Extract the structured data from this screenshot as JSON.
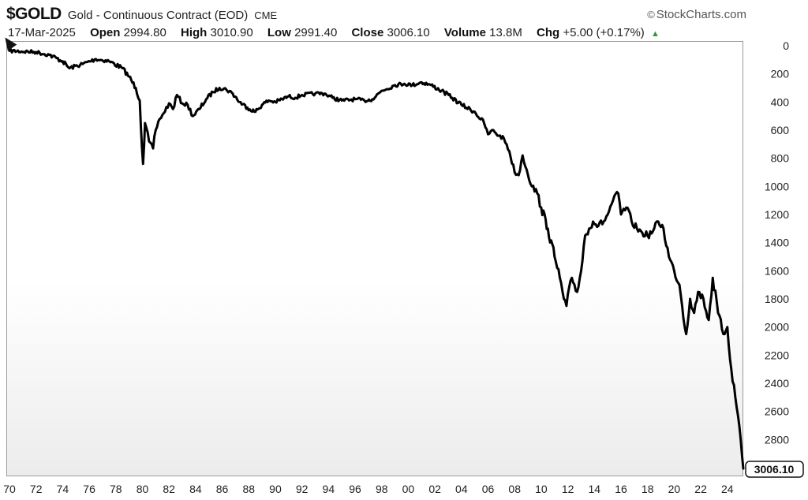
{
  "header": {
    "symbol": "$GOLD",
    "contract": "Gold - Continuous Contract (EOD)",
    "exchange": "CME",
    "brand_mark": "©",
    "brand": "StockCharts.com",
    "date": "17-Mar-2025",
    "open_label": "Open",
    "open_value": "2994.80",
    "high_label": "High",
    "high_value": "3010.90",
    "low_label": "Low",
    "low_value": "2991.40",
    "close_label": "Close",
    "close_value": "3006.10",
    "volume_label": "Volume",
    "volume_value": "13.8M",
    "chg_label": "Chg",
    "chg_value": "+5.00 (+0.17%)",
    "chg_arrow": "▲"
  },
  "colors": {
    "line": "#000000",
    "frame": "#9a9a9a",
    "tick_text": "#222222",
    "up": "#2a9a3a"
  },
  "icons": {
    "cursor": "mouse-pointer-icon"
  },
  "chart_data": {
    "type": "line",
    "y_axis_inverted": true,
    "ylim": [
      0,
      3000
    ],
    "yticks": [
      0,
      200,
      400,
      600,
      800,
      1000,
      1200,
      1400,
      1600,
      1800,
      2000,
      2200,
      2400,
      2600,
      2800
    ],
    "xlim": [
      1970,
      2025.2
    ],
    "xticks": [
      1970,
      1972,
      1974,
      1976,
      1978,
      1980,
      1982,
      1984,
      1986,
      1988,
      1990,
      1992,
      1994,
      1996,
      1998,
      2000,
      2002,
      2004,
      2006,
      2008,
      2010,
      2012,
      2014,
      2016,
      2018,
      2020,
      2022,
      2024
    ],
    "xtick_labels": [
      "70",
      "72",
      "74",
      "76",
      "78",
      "80",
      "82",
      "84",
      "86",
      "88",
      "90",
      "92",
      "94",
      "96",
      "98",
      "00",
      "02",
      "04",
      "06",
      "08",
      "10",
      "12",
      "14",
      "16",
      "18",
      "20",
      "22",
      "24"
    ],
    "last_value_label": "3006.10",
    "grid": false,
    "series": [
      {
        "x": [
          1970.0,
          1972.0,
          1973.0,
          1974.0,
          1974.5,
          1975.5,
          1976.5,
          1977.5,
          1978.5,
          1979.0,
          1979.5,
          1979.8,
          1980.05,
          1980.2,
          1980.5,
          1980.8,
          1981.0,
          1981.3,
          1981.6,
          1982.0,
          1982.3,
          1982.6,
          1983.0,
          1983.4,
          1983.8,
          1984.3,
          1984.8,
          1985.3,
          1985.8,
          1986.3,
          1986.8,
          1987.3,
          1987.9,
          1988.5,
          1989.0,
          1989.5,
          1990.0,
          1990.5,
          1991.0,
          1991.5,
          1992.0,
          1993.0,
          1993.7,
          1994.3,
          1995.0,
          1996.0,
          1996.7,
          1997.3,
          1998.0,
          1999.0,
          1999.7,
          2000.3,
          2001.0,
          2001.7,
          2002.5,
          2003.3,
          2004.0,
          2005.0,
          2005.7,
          2006.0,
          2006.4,
          2006.8,
          2007.2,
          2007.6,
          2008.0,
          2008.3,
          2008.6,
          2008.9,
          2009.3,
          2009.7,
          2010.0,
          2010.5,
          2011.0,
          2011.4,
          2011.7,
          2011.9,
          2012.3,
          2012.7,
          2013.0,
          2013.3,
          2013.6,
          2013.9,
          2014.3,
          2014.7,
          2015.0,
          2015.4,
          2015.8,
          2016.0,
          2016.4,
          2016.8,
          2017.2,
          2017.6,
          2018.0,
          2018.4,
          2018.8,
          2019.2,
          2019.6,
          2020.0,
          2020.4,
          2020.6,
          2020.9,
          2021.2,
          2021.5,
          2021.8,
          2022.2,
          2022.6,
          2022.9,
          2023.3,
          2023.7,
          2024.0,
          2024.3,
          2024.6,
          2024.9,
          2025.2
        ],
        "y": [
          36,
          45,
          65,
          110,
          160,
          130,
          95,
          110,
          160,
          220,
          300,
          390,
          840,
          550,
          680,
          730,
          600,
          520,
          480,
          410,
          450,
          350,
          410,
          420,
          500,
          450,
          380,
          330,
          300,
          310,
          340,
          400,
          440,
          470,
          420,
          390,
          400,
          380,
          360,
          370,
          350,
          340,
          340,
          370,
          390,
          380,
          390,
          380,
          320,
          280,
          270,
          280,
          260,
          280,
          320,
          370,
          420,
          470,
          550,
          630,
          600,
          640,
          660,
          750,
          900,
          920,
          780,
          880,
          1000,
          1050,
          1150,
          1300,
          1500,
          1650,
          1800,
          1850,
          1650,
          1750,
          1600,
          1350,
          1300,
          1250,
          1280,
          1250,
          1200,
          1100,
          1050,
          1200,
          1150,
          1250,
          1300,
          1330,
          1350,
          1320,
          1250,
          1300,
          1500,
          1600,
          1700,
          1850,
          2050,
          1800,
          1900,
          1750,
          1800,
          1950,
          1650,
          1900,
          2050,
          2000,
          2300,
          2500,
          2700,
          3006
        ]
      }
    ]
  }
}
